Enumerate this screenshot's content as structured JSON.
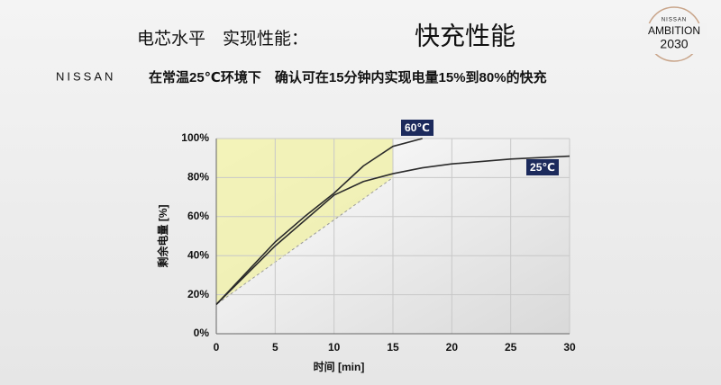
{
  "header": {
    "title_prefix": "电芯水平　实现性能：",
    "title": "快充性能",
    "brand": "NISSAN",
    "subtitle": "在常温25℃环境下　确认可在15分钟内实现电量15%到80%的快充",
    "logo": {
      "top": "NISSAN",
      "line1": "AMBITION",
      "line2": "2030"
    }
  },
  "chart_data": {
    "type": "line",
    "ylabel": "剩余电量 [%]",
    "xlabel": "时间 [min]",
    "x": [
      0,
      2.5,
      5,
      7.5,
      10,
      12.5,
      15,
      17.5,
      20,
      25,
      30
    ],
    "series": [
      {
        "name": "60℃",
        "color": "#2b2b2b",
        "values": [
          15,
          31,
          47,
          60,
          72,
          86,
          96,
          100,
          null,
          null,
          null
        ]
      },
      {
        "name": "25℃",
        "color": "#2b2b2b",
        "values": [
          15,
          30,
          45,
          58,
          71,
          78,
          82,
          85,
          87,
          89.5,
          91
        ]
      }
    ],
    "fast_charge_zone": {
      "x": [
        0,
        15
      ],
      "y": [
        15,
        80
      ],
      "color": "#f0f0a8"
    },
    "xlim": [
      0,
      30
    ],
    "xticks": [
      0,
      5,
      10,
      15,
      20,
      25,
      30
    ],
    "ylim": [
      0,
      100
    ],
    "yticks": [
      {
        "value": 0,
        "label": "0%"
      },
      {
        "value": 20,
        "label": "20%"
      },
      {
        "value": 40,
        "label": "40%"
      },
      {
        "value": 60,
        "label": "60%"
      },
      {
        "value": 80,
        "label": "80%"
      },
      {
        "value": 100,
        "label": "100%"
      }
    ],
    "grid": true
  }
}
